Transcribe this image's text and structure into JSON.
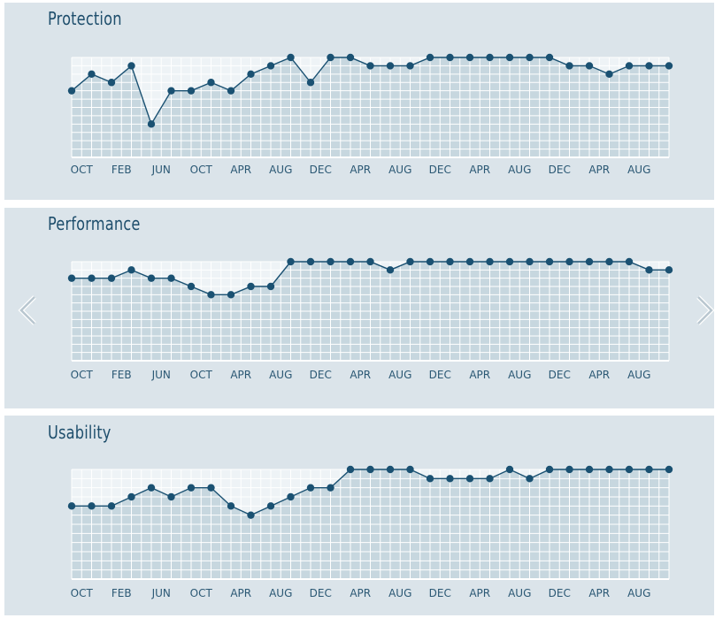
{
  "charts": [
    {
      "type": "line",
      "title": "Protection",
      "x_tick_labels": [
        "OCT",
        "FEB",
        "JUN",
        "OCT",
        "APR",
        "AUG",
        "DEC",
        "APR",
        "AUG",
        "DEC",
        "APR",
        "AUG",
        "DEC",
        "APR",
        "AUG"
      ],
      "ylim": [
        0,
        6
      ],
      "grid": true,
      "series": [
        {
          "values": [
            4,
            5,
            4.5,
            5.5,
            2,
            4,
            4,
            4.5,
            4,
            5,
            5.5,
            6,
            4.5,
            6,
            6,
            5.5,
            5.5,
            5.5,
            6,
            6,
            6,
            6,
            6,
            6,
            6,
            5.5,
            5.5,
            5,
            5.5,
            5.5,
            5.5
          ]
        }
      ]
    },
    {
      "type": "line",
      "title": "Performance",
      "x_tick_labels": [
        "OCT",
        "FEB",
        "JUN",
        "OCT",
        "APR",
        "AUG",
        "DEC",
        "APR",
        "AUG",
        "DEC",
        "APR",
        "AUG",
        "DEC",
        "APR",
        "AUG"
      ],
      "ylim": [
        0,
        6
      ],
      "grid": true,
      "series": [
        {
          "values": [
            5,
            5,
            5,
            5.5,
            5,
            5,
            4.5,
            4,
            4,
            4.5,
            4.5,
            6,
            6,
            6,
            6,
            6,
            5.5,
            6,
            6,
            6,
            6,
            6,
            6,
            6,
            6,
            6,
            6,
            6,
            6,
            5.5,
            5.5
          ]
        }
      ]
    },
    {
      "type": "line",
      "title": "Usability",
      "x_tick_labels": [
        "OCT",
        "FEB",
        "JUN",
        "OCT",
        "APR",
        "AUG",
        "DEC",
        "APR",
        "AUG",
        "DEC",
        "APR",
        "AUG",
        "DEC",
        "APR",
        "AUG"
      ],
      "ylim": [
        0,
        6
      ],
      "grid": true,
      "series": [
        {
          "values": [
            4,
            4,
            4,
            4.5,
            5,
            4.5,
            5,
            5,
            4,
            3.5,
            4,
            4.5,
            5,
            5,
            6,
            6,
            6,
            6,
            5.5,
            5.5,
            5.5,
            5.5,
            6,
            5.5,
            6,
            6,
            6,
            6,
            6,
            6,
            6
          ]
        }
      ]
    }
  ],
  "colors": {
    "line": "#1a5172",
    "panel_bg": "#dbe4ea",
    "plot_fill": "#c7d7df",
    "grid": "#ffffff",
    "title": "#1e4e6c"
  },
  "icons": {
    "left": "chevron-left-icon",
    "right": "chevron-right-icon"
  }
}
